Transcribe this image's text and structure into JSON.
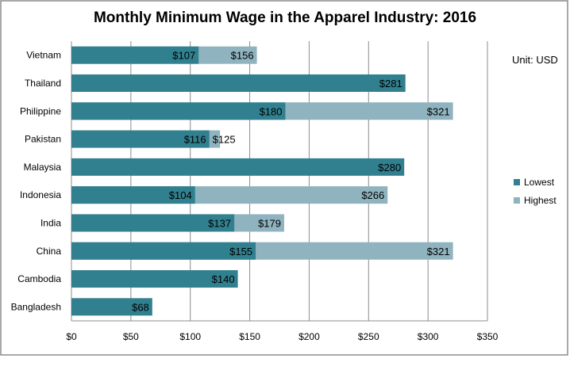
{
  "chart_data": {
    "type": "bar",
    "orientation": "horizontal",
    "title": "Monthly Minimum Wage in the Apparel Industry: 2016",
    "annotation": "Unit: USD",
    "categories": [
      "Vietnam",
      "Thailand",
      "Philippine",
      "Pakistan",
      "Malaysia",
      "Indonesia",
      "India",
      "China",
      "Cambodia",
      "Bangladesh"
    ],
    "series": [
      {
        "name": "Lowest",
        "color": "#31808f",
        "values": [
          107,
          281,
          180,
          116,
          280,
          104,
          137,
          155,
          140,
          68
        ]
      },
      {
        "name": "Highest",
        "color": "#8fb3bf",
        "values": [
          156,
          null,
          321,
          125,
          null,
          266,
          179,
          321,
          null,
          null
        ]
      }
    ],
    "data_labels": {
      "Lowest": [
        "$107",
        "$281",
        "$180",
        "$116",
        "$280",
        "$104",
        "$137",
        "$155",
        "$140",
        "$68"
      ],
      "Highest": [
        "$156",
        "",
        "$321",
        "$125",
        "",
        "$266",
        "$179",
        "$321",
        "",
        ""
      ]
    },
    "xlim": [
      0,
      350
    ],
    "xticks": [
      0,
      50,
      100,
      150,
      200,
      250,
      300,
      350
    ],
    "xtick_labels": [
      "$0",
      "$50",
      "$100",
      "$150",
      "$200",
      "$250",
      "$300",
      "$350"
    ],
    "grid": "vertical",
    "legend_position": "right"
  }
}
